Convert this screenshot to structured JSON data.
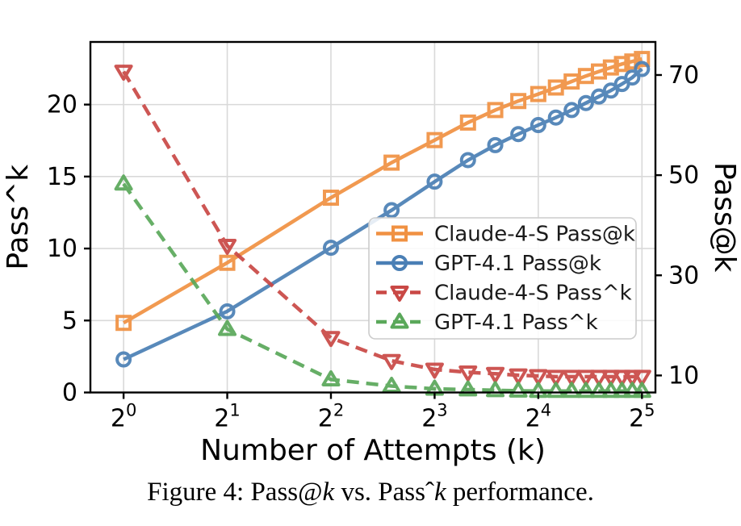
{
  "figure": {
    "caption_parts": [
      {
        "text": "Figure 4: Pass@",
        "italic": false
      },
      {
        "text": "k",
        "italic": true
      },
      {
        "text": " vs. Passˆ",
        "italic": false
      },
      {
        "text": "k",
        "italic": true
      },
      {
        "text": " performance.",
        "italic": false
      }
    ]
  },
  "chart_data": {
    "type": "line",
    "x_scale": "log2",
    "grid": true,
    "legend_position": "inside-center-right",
    "xlabel": "Number of Attempts (k)",
    "x": [
      1,
      2,
      4,
      6,
      8,
      10,
      12,
      14,
      16,
      18,
      20,
      22,
      24,
      26,
      28,
      30,
      32
    ],
    "x_ticks": [
      {
        "v": 1,
        "base": "2",
        "exp": "0"
      },
      {
        "v": 2,
        "base": "2",
        "exp": "1"
      },
      {
        "v": 4,
        "base": "2",
        "exp": "2"
      },
      {
        "v": 8,
        "base": "2",
        "exp": "3"
      },
      {
        "v": 16,
        "base": "2",
        "exp": "4"
      },
      {
        "v": 32,
        "base": "2",
        "exp": "5"
      }
    ],
    "x_log2_range": [
      -0.32,
      5.13
    ],
    "left_axis": {
      "label": "Pass^k",
      "ticks": [
        0,
        5,
        10,
        15,
        20
      ],
      "range": [
        0,
        24.35
      ]
    },
    "right_axis": {
      "label": "Pass@k",
      "ticks": [
        10,
        30,
        50,
        70
      ],
      "range": [
        6.6,
        76.6
      ]
    },
    "series": [
      {
        "name": "Claude-4-S Pass@k",
        "axis": "right",
        "color": "#f09142",
        "marker": "square",
        "line": "solid",
        "values": [
          20.5,
          32.5,
          45.5,
          52.5,
          57.0,
          60.5,
          63.0,
          64.8,
          66.2,
          67.5,
          68.7,
          69.8,
          70.7,
          71.5,
          72.2,
          72.7,
          73.2
        ]
      },
      {
        "name": "GPT-4.1 Pass@k",
        "axis": "right",
        "color": "#4a7fb5",
        "marker": "circle",
        "line": "solid",
        "values": [
          13.2,
          22.8,
          35.5,
          43.0,
          48.7,
          53.0,
          56.0,
          58.2,
          60.0,
          61.5,
          63.0,
          64.4,
          65.7,
          66.9,
          68.2,
          69.5,
          71.2
        ]
      },
      {
        "name": "Claude-4-S Pass^k",
        "axis": "left",
        "color": "#c94845",
        "marker": "triangle-down",
        "line": "dashed",
        "values": [
          22.3,
          10.2,
          3.8,
          2.2,
          1.6,
          1.4,
          1.3,
          1.2,
          1.15,
          1.1,
          1.1,
          1.1,
          1.1,
          1.1,
          1.1,
          1.1,
          1.1
        ]
      },
      {
        "name": "GPT-4.1 Pass^k",
        "axis": "left",
        "color": "#5aa85a",
        "marker": "triangle-up",
        "line": "dashed",
        "values": [
          14.5,
          4.4,
          0.9,
          0.45,
          0.25,
          0.2,
          0.15,
          0.12,
          0.1,
          0.1,
          0.1,
          0.1,
          0.1,
          0.1,
          0.1,
          0.1,
          0.1
        ]
      }
    ],
    "style": {
      "grid_color": "#d9d9d9",
      "spine_color": "#000000",
      "text_color": "#000000",
      "legend_border_color": "#cccccc",
      "legend_bg_color": "#ffffff"
    }
  }
}
